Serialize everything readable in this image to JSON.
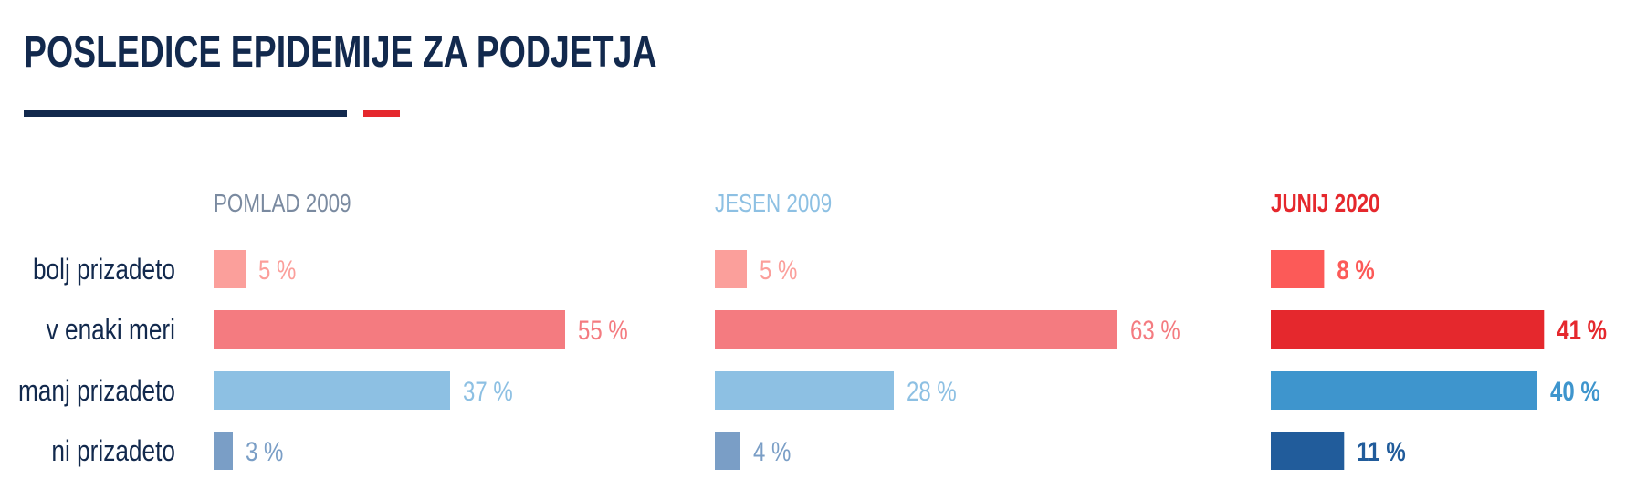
{
  "header": {
    "title": "POSLEDICE EPIDEMIJE ZA PODJETJA"
  },
  "chart_data": {
    "type": "bar",
    "orientation": "horizontal",
    "unit": "%",
    "categories": [
      "bolj prizadeto",
      "v enaki meri",
      "manj prizadeto",
      "ni prizadeto"
    ],
    "panels": [
      {
        "name": "POMLAD 2009",
        "name_color": "#7a8aa0",
        "values": [
          5,
          55,
          37,
          3
        ],
        "labels": [
          "5 %",
          "55 %",
          "37 %",
          "3 %"
        ],
        "bar_colors": [
          "#fb9f9b",
          "#f47b80",
          "#8dc0e3",
          "#7a9ec6"
        ],
        "label_colors": [
          "#fb9f9b",
          "#f47b80",
          "#8dc0e3",
          "#7a9ec6"
        ]
      },
      {
        "name": "JESEN 2009",
        "name_color": "#8dc0e3",
        "values": [
          5,
          63,
          28,
          4
        ],
        "labels": [
          "5 %",
          "63 %",
          "28 %",
          "4 %"
        ],
        "bar_colors": [
          "#fb9f9b",
          "#f47b80",
          "#8dc0e3",
          "#7a9ec6"
        ],
        "label_colors": [
          "#fb9f9b",
          "#f47b80",
          "#8dc0e3",
          "#7a9ec6"
        ]
      },
      {
        "name": "JUNIJ 2020",
        "name_color": "#e5282d",
        "values": [
          8,
          41,
          40,
          11
        ],
        "labels": [
          "8 %",
          "41 %",
          "40 %",
          "11 %"
        ],
        "bar_colors": [
          "#fc5a58",
          "#e5282d",
          "#3e95cd",
          "#215c9b"
        ],
        "label_colors": [
          "#fc5a58",
          "#e5282d",
          "#3e95cd",
          "#215c9b"
        ]
      }
    ],
    "category_label_color": "#12294d"
  }
}
